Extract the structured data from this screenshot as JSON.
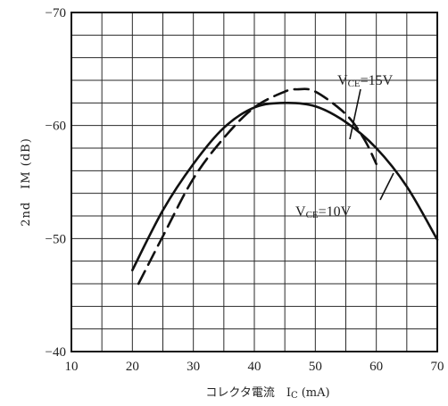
{
  "chart_data": {
    "type": "line",
    "xlabel": "コレクタ電流　I",
    "xlabel_sub": "C",
    "xlabel_unit": "(mA)",
    "ylabel": "2nd　IM (dB)",
    "xlim": [
      10,
      70
    ],
    "ylim": [
      -40,
      -70
    ],
    "x_ticks": [
      10,
      20,
      30,
      40,
      50,
      60,
      70
    ],
    "y_ticks": [
      -70,
      -60,
      -50,
      -40
    ],
    "x_tick_labels": [
      "10",
      "20",
      "30",
      "40",
      "50",
      "60",
      "70"
    ],
    "y_tick_labels": [
      "−70",
      "−60",
      "−50",
      "−40"
    ],
    "grid": true,
    "series": [
      {
        "name": "VCE=10V",
        "label_main": "V",
        "label_sub": "CE",
        "label_rest": "=10V",
        "style": "solid",
        "x": [
          20,
          25,
          30,
          35,
          40,
          45,
          50,
          55,
          60,
          65,
          70
        ],
        "y": [
          -47.2,
          -52.5,
          -56.6,
          -59.8,
          -61.6,
          -62.0,
          -61.7,
          -60.3,
          -58.0,
          -54.6,
          -49.9
        ]
      },
      {
        "name": "VCE=15V",
        "label_main": "V",
        "label_sub": "CE",
        "label_rest": "=15V",
        "style": "dashed",
        "x": [
          21,
          25,
          30,
          35,
          40,
          45,
          47,
          50,
          55,
          58,
          60
        ],
        "y": [
          -46.0,
          -50.2,
          -55.3,
          -58.9,
          -61.6,
          -63.0,
          -63.2,
          -63.0,
          -61.0,
          -58.8,
          -56.6
        ]
      }
    ]
  }
}
